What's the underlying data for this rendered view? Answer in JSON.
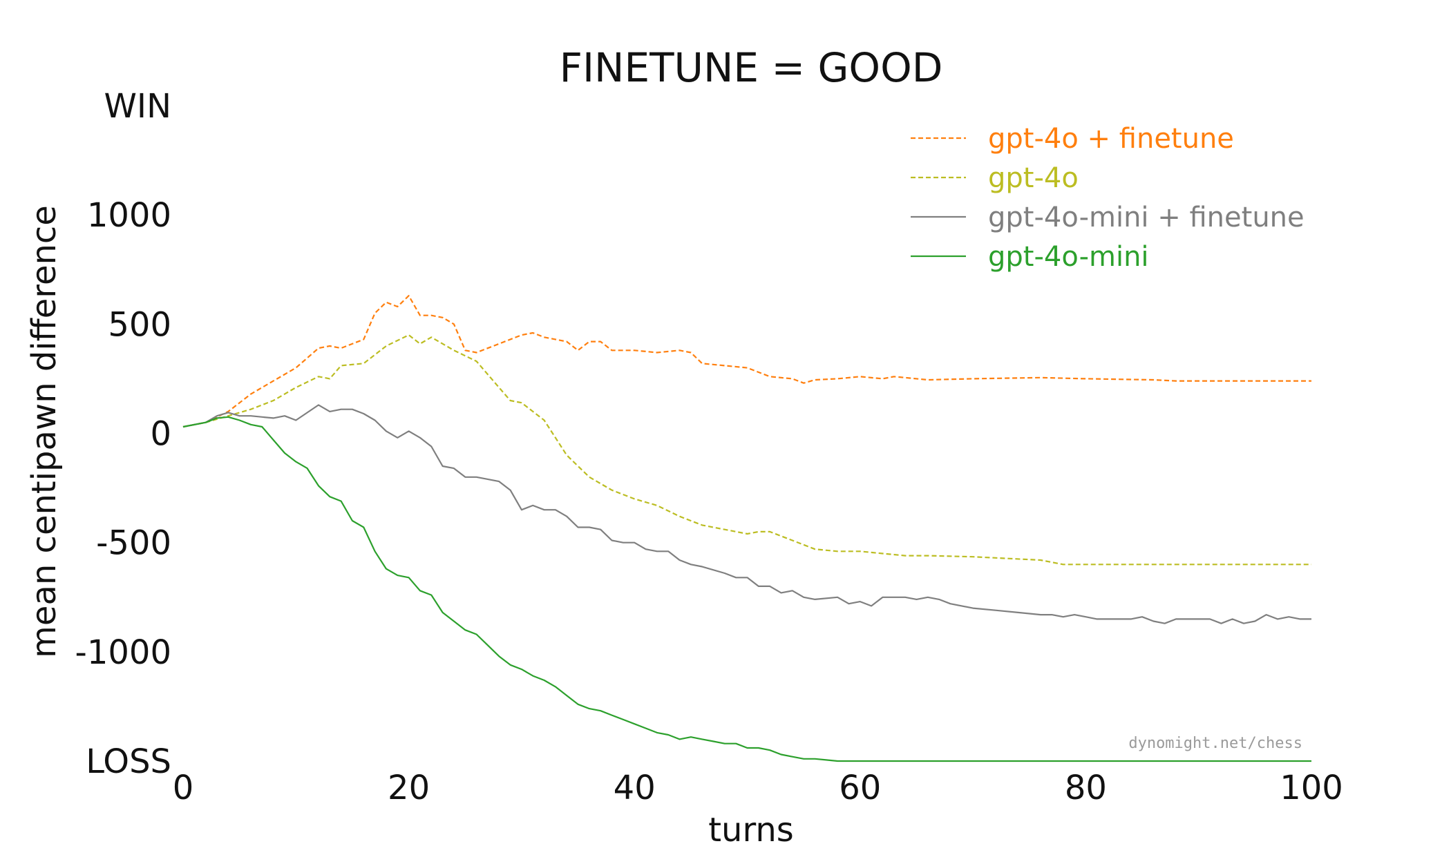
{
  "chart_data": {
    "type": "line",
    "title": "FINETUNE = GOOD",
    "xlabel": "turns",
    "ylabel": "mean centipawn difference",
    "xlim": [
      0,
      100
    ],
    "ylim": [
      -1500,
      1500
    ],
    "x_ticks": [
      0,
      20,
      40,
      60,
      80,
      100
    ],
    "y_ticks": [
      {
        "value": 1500,
        "label": "WIN"
      },
      {
        "value": 1000,
        "label": "1000"
      },
      {
        "value": 500,
        "label": "500"
      },
      {
        "value": 0,
        "label": "0"
      },
      {
        "value": -500,
        "label": "-500"
      },
      {
        "value": -1000,
        "label": "-1000"
      },
      {
        "value": -1500,
        "label": "LOSS"
      }
    ],
    "grid": false,
    "legend_position": "top-right",
    "watermark": "dynomight.net/chess",
    "series": [
      {
        "name": "gpt-4o + finetune",
        "color": "#ff7f0e",
        "dash": "dashed",
        "x": [
          0,
          2,
          4,
          6,
          8,
          10,
          12,
          13,
          14,
          16,
          17,
          18,
          19,
          20,
          21,
          22,
          23,
          24,
          25,
          26,
          28,
          30,
          31,
          32,
          34,
          35,
          36,
          37,
          38,
          40,
          42,
          44,
          45,
          46,
          48,
          50,
          52,
          54,
          55,
          56,
          58,
          60,
          62,
          63,
          64,
          66,
          70,
          76,
          80,
          86,
          88,
          100
        ],
        "y": [
          30,
          50,
          100,
          180,
          240,
          300,
          390,
          400,
          390,
          430,
          550,
          600,
          580,
          630,
          540,
          540,
          530,
          500,
          380,
          370,
          410,
          450,
          460,
          440,
          420,
          380,
          420,
          420,
          380,
          380,
          370,
          380,
          370,
          320,
          310,
          300,
          260,
          250,
          230,
          245,
          250,
          260,
          250,
          260,
          255,
          245,
          250,
          255,
          250,
          245,
          240,
          240
        ]
      },
      {
        "name": "gpt-4o",
        "color": "#bcbd22",
        "dash": "dashed",
        "x": [
          0,
          2,
          4,
          6,
          8,
          10,
          12,
          13,
          14,
          16,
          18,
          20,
          21,
          22,
          24,
          26,
          28,
          29,
          30,
          32,
          34,
          36,
          38,
          40,
          42,
          44,
          46,
          48,
          50,
          51,
          52,
          54,
          56,
          58,
          60,
          62,
          64,
          66,
          70,
          76,
          78,
          80,
          90,
          100
        ],
        "y": [
          30,
          50,
          80,
          110,
          150,
          210,
          260,
          250,
          310,
          320,
          400,
          450,
          410,
          440,
          380,
          330,
          210,
          150,
          140,
          60,
          -100,
          -200,
          -260,
          -300,
          -330,
          -380,
          -420,
          -440,
          -460,
          -450,
          -450,
          -490,
          -530,
          -540,
          -540,
          -550,
          -560,
          -560,
          -565,
          -580,
          -600,
          -600,
          -600,
          -600
        ]
      },
      {
        "name": "gpt-4o-mini + finetune",
        "color": "#7f7f7f",
        "dash": "solid",
        "x": [
          0,
          2,
          3,
          4,
          5,
          6,
          8,
          9,
          10,
          12,
          13,
          14,
          15,
          16,
          17,
          18,
          19,
          20,
          21,
          22,
          23,
          24,
          25,
          26,
          28,
          29,
          30,
          31,
          32,
          33,
          34,
          35,
          36,
          37,
          38,
          39,
          40,
          41,
          42,
          43,
          44,
          45,
          46,
          48,
          49,
          50,
          51,
          52,
          53,
          54,
          55,
          56,
          58,
          59,
          60,
          61,
          62,
          63,
          64,
          65,
          66,
          67,
          68,
          70,
          72,
          74,
          76,
          77,
          78,
          79,
          80,
          81,
          82,
          83,
          84,
          85,
          86,
          87,
          88,
          89,
          90,
          91,
          92,
          93,
          94,
          95,
          96,
          97,
          98,
          99,
          100
        ],
        "y": [
          30,
          50,
          80,
          95,
          80,
          80,
          70,
          80,
          60,
          130,
          100,
          110,
          110,
          90,
          60,
          10,
          -20,
          10,
          -20,
          -60,
          -150,
          -160,
          -200,
          -200,
          -220,
          -260,
          -350,
          -330,
          -350,
          -350,
          -380,
          -430,
          -430,
          -440,
          -490,
          -500,
          -500,
          -530,
          -540,
          -540,
          -580,
          -600,
          -610,
          -640,
          -660,
          -660,
          -700,
          -700,
          -730,
          -720,
          -750,
          -760,
          -750,
          -780,
          -770,
          -790,
          -750,
          -750,
          -750,
          -760,
          -750,
          -760,
          -780,
          -800,
          -810,
          -820,
          -830,
          -830,
          -840,
          -830,
          -840,
          -850,
          -850,
          -850,
          -850,
          -840,
          -860,
          -870,
          -850,
          -850,
          -850,
          -850,
          -870,
          -850,
          -870,
          -860,
          -830,
          -850,
          -840,
          -850,
          -850
        ]
      },
      {
        "name": "gpt-4o-mini",
        "color": "#2ca02c",
        "dash": "solid",
        "x": [
          0,
          2,
          3,
          4,
          5,
          6,
          7,
          8,
          9,
          10,
          11,
          12,
          13,
          14,
          15,
          16,
          17,
          18,
          19,
          20,
          21,
          22,
          23,
          24,
          25,
          26,
          27,
          28,
          29,
          30,
          31,
          32,
          33,
          34,
          35,
          36,
          37,
          38,
          39,
          40,
          41,
          42,
          43,
          44,
          45,
          46,
          47,
          48,
          49,
          50,
          51,
          52,
          53,
          54,
          55,
          56,
          57,
          58,
          59,
          60,
          61,
          100
        ],
        "y": [
          30,
          50,
          70,
          75,
          60,
          40,
          30,
          -30,
          -90,
          -130,
          -160,
          -240,
          -290,
          -310,
          -400,
          -430,
          -540,
          -620,
          -650,
          -660,
          -720,
          -740,
          -820,
          -860,
          -900,
          -920,
          -970,
          -1020,
          -1060,
          -1080,
          -1110,
          -1130,
          -1160,
          -1200,
          -1240,
          -1260,
          -1270,
          -1290,
          -1310,
          -1330,
          -1350,
          -1370,
          -1380,
          -1400,
          -1390,
          -1400,
          -1410,
          -1420,
          -1420,
          -1440,
          -1440,
          -1450,
          -1470,
          -1480,
          -1490,
          -1490,
          -1495,
          -1500,
          -1500,
          -1500,
          -1500,
          -1500
        ]
      }
    ]
  }
}
